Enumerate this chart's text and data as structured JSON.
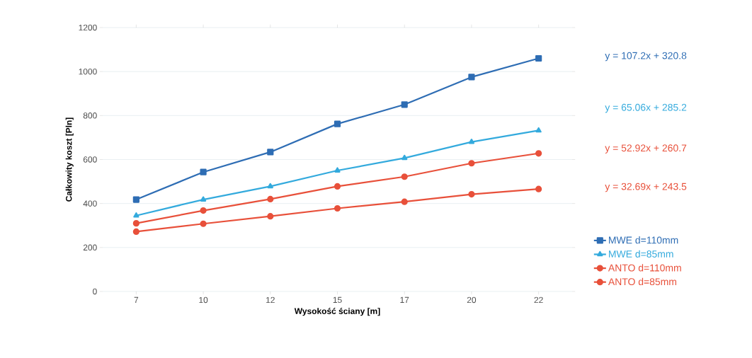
{
  "chart_data": {
    "type": "line",
    "xlabel": "Wysokość ściany [m]",
    "ylabel": "Całkowity koszt [Pln]",
    "categories": [
      "7",
      "10",
      "12",
      "15",
      "17",
      "20",
      "22"
    ],
    "series": [
      {
        "name": "MWE d=110mm",
        "color": "#2e6db4",
        "marker": "square",
        "values": [
          418,
          543,
          634,
          762,
          850,
          975,
          1060
        ]
      },
      {
        "name": "MWE d=85mm",
        "color": "#33aadd",
        "marker": "triangle",
        "values": [
          345,
          418,
          478,
          550,
          607,
          680,
          732
        ]
      },
      {
        "name": "ANTO d=110mm",
        "color": "#e8503a",
        "marker": "circle",
        "values": [
          310,
          368,
          420,
          478,
          522,
          583,
          628
        ]
      },
      {
        "name": "ANTO d=85mm",
        "color": "#e8503a",
        "marker": "circle",
        "values": [
          272,
          308,
          342,
          378,
          408,
          442,
          466
        ]
      }
    ],
    "annotations": [
      "y = 107.2x + 320.8",
      "y = 65.06x + 285.2",
      "y = 52.92x + 260.7",
      "y = 32.69x + 243.5"
    ],
    "ylim": [
      0,
      1200
    ],
    "yticks": [
      0,
      200,
      400,
      600,
      800,
      1000,
      1200
    ],
    "grid": "y",
    "legend": "right",
    "line_style": "solid"
  }
}
